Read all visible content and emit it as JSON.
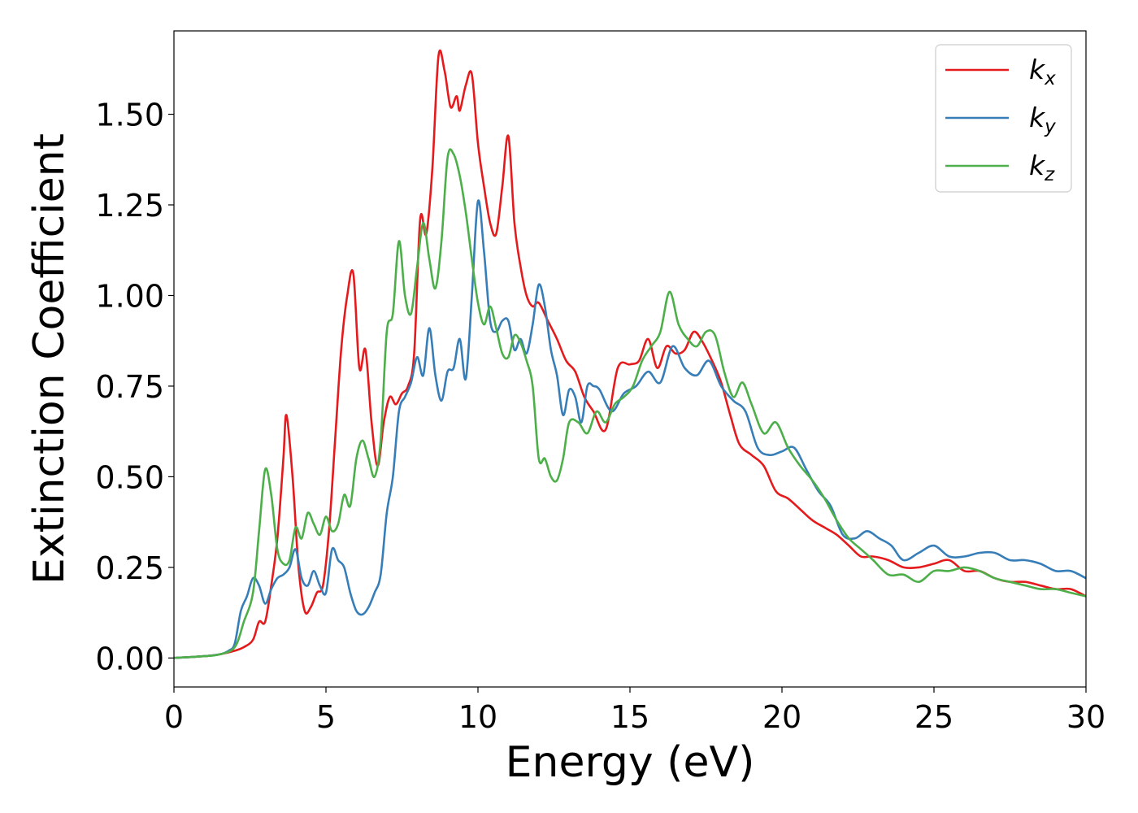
{
  "chart_data": {
    "type": "line",
    "xlabel": "Energy (eV)",
    "ylabel": "Extinction Coefficient",
    "xlim": [
      0,
      30
    ],
    "ylim": [
      -0.08,
      1.73
    ],
    "xticks": [
      0,
      5,
      10,
      15,
      20,
      25,
      30
    ],
    "xtick_labels": [
      "0",
      "5",
      "10",
      "15",
      "20",
      "25",
      "30"
    ],
    "yticks": [
      0,
      0.25,
      0.5,
      0.75,
      1.0,
      1.25,
      1.5
    ],
    "ytick_labels": [
      "0.00",
      "0.25",
      "0.50",
      "0.75",
      "1.00",
      "1.25",
      "1.50"
    ],
    "grid": false,
    "legend_position": "top-right",
    "series": [
      {
        "name": "k_x",
        "legend_base": "k",
        "legend_sub": "x",
        "color": "#e41a1c",
        "x": [
          0,
          1,
          1.5,
          2,
          2.3,
          2.6,
          2.8,
          3.0,
          3.2,
          3.4,
          3.6,
          3.7,
          3.9,
          4.1,
          4.3,
          4.5,
          4.7,
          4.9,
          5.1,
          5.3,
          5.5,
          5.7,
          5.9,
          6.1,
          6.3,
          6.5,
          6.7,
          6.9,
          7.1,
          7.3,
          7.5,
          7.7,
          7.9,
          8.1,
          8.3,
          8.5,
          8.7,
          8.9,
          9.1,
          9.3,
          9.4,
          9.6,
          9.8,
          10.0,
          10.2,
          10.4,
          10.6,
          10.8,
          11.0,
          11.2,
          11.4,
          11.6,
          11.8,
          12.0,
          12.3,
          12.6,
          12.9,
          13.2,
          13.5,
          13.8,
          14.2,
          14.6,
          15.0,
          15.3,
          15.6,
          15.9,
          16.2,
          16.5,
          16.8,
          17.1,
          17.4,
          17.7,
          18.0,
          18.3,
          18.6,
          19.0,
          19.4,
          19.8,
          20.2,
          20.6,
          21.0,
          21.4,
          21.8,
          22.2,
          22.6,
          23.0,
          23.5,
          24.0,
          24.5,
          25.0,
          25.5,
          26.0,
          26.5,
          27.0,
          27.5,
          28.0,
          28.5,
          29.0,
          29.5,
          30.0
        ],
        "y": [
          0.0,
          0.005,
          0.01,
          0.02,
          0.03,
          0.05,
          0.1,
          0.1,
          0.2,
          0.33,
          0.55,
          0.67,
          0.5,
          0.25,
          0.13,
          0.14,
          0.18,
          0.2,
          0.35,
          0.6,
          0.85,
          1.0,
          1.06,
          0.8,
          0.85,
          0.65,
          0.53,
          0.65,
          0.72,
          0.7,
          0.73,
          0.75,
          0.84,
          1.21,
          1.17,
          1.35,
          1.66,
          1.62,
          1.52,
          1.55,
          1.51,
          1.58,
          1.61,
          1.42,
          1.3,
          1.2,
          1.17,
          1.3,
          1.44,
          1.2,
          1.08,
          1.0,
          0.97,
          0.98,
          0.93,
          0.88,
          0.82,
          0.79,
          0.72,
          0.68,
          0.63,
          0.8,
          0.81,
          0.82,
          0.88,
          0.8,
          0.86,
          0.84,
          0.85,
          0.9,
          0.87,
          0.82,
          0.76,
          0.67,
          0.59,
          0.56,
          0.53,
          0.46,
          0.44,
          0.41,
          0.38,
          0.36,
          0.34,
          0.31,
          0.28,
          0.28,
          0.27,
          0.25,
          0.25,
          0.26,
          0.27,
          0.24,
          0.24,
          0.22,
          0.21,
          0.21,
          0.2,
          0.19,
          0.19,
          0.17
        ]
      },
      {
        "name": "k_y",
        "legend_base": "k",
        "legend_sub": "y",
        "color": "#377eb8",
        "x": [
          0,
          1,
          1.5,
          1.8,
          2.0,
          2.2,
          2.4,
          2.6,
          2.8,
          3.0,
          3.2,
          3.4,
          3.6,
          3.8,
          4.0,
          4.2,
          4.4,
          4.6,
          4.8,
          5.0,
          5.2,
          5.4,
          5.6,
          5.8,
          6.0,
          6.2,
          6.4,
          6.6,
          6.8,
          7.0,
          7.2,
          7.4,
          7.6,
          7.8,
          8.0,
          8.2,
          8.4,
          8.6,
          8.8,
          9.0,
          9.2,
          9.4,
          9.6,
          9.8,
          10.0,
          10.2,
          10.4,
          10.6,
          10.8,
          11.0,
          11.2,
          11.4,
          11.6,
          11.8,
          12.0,
          12.2,
          12.4,
          12.6,
          12.8,
          13.0,
          13.2,
          13.4,
          13.6,
          13.8,
          14.0,
          14.4,
          14.8,
          15.2,
          15.6,
          16.0,
          16.4,
          16.8,
          17.2,
          17.6,
          18.0,
          18.4,
          18.8,
          19.2,
          19.6,
          20.0,
          20.4,
          20.8,
          21.2,
          21.6,
          22.0,
          22.4,
          22.8,
          23.2,
          23.6,
          24.0,
          24.5,
          25.0,
          25.5,
          26.0,
          26.5,
          27.0,
          27.5,
          28.0,
          28.5,
          29.0,
          29.5,
          30.0
        ],
        "y": [
          0.0,
          0.005,
          0.01,
          0.02,
          0.04,
          0.13,
          0.17,
          0.22,
          0.2,
          0.15,
          0.19,
          0.22,
          0.23,
          0.25,
          0.3,
          0.22,
          0.2,
          0.24,
          0.2,
          0.18,
          0.3,
          0.27,
          0.25,
          0.18,
          0.13,
          0.12,
          0.14,
          0.18,
          0.23,
          0.4,
          0.5,
          0.68,
          0.72,
          0.76,
          0.83,
          0.78,
          0.91,
          0.78,
          0.71,
          0.79,
          0.8,
          0.88,
          0.77,
          1.0,
          1.26,
          1.12,
          0.93,
          0.9,
          0.93,
          0.93,
          0.85,
          0.88,
          0.84,
          0.92,
          1.03,
          0.97,
          0.85,
          0.78,
          0.67,
          0.74,
          0.72,
          0.65,
          0.75,
          0.75,
          0.74,
          0.68,
          0.73,
          0.75,
          0.79,
          0.76,
          0.86,
          0.8,
          0.78,
          0.82,
          0.75,
          0.71,
          0.68,
          0.58,
          0.56,
          0.57,
          0.58,
          0.52,
          0.46,
          0.42,
          0.34,
          0.33,
          0.35,
          0.33,
          0.31,
          0.27,
          0.29,
          0.31,
          0.28,
          0.28,
          0.29,
          0.29,
          0.27,
          0.27,
          0.26,
          0.24,
          0.24,
          0.22
        ]
      },
      {
        "name": "k_z",
        "legend_base": "k",
        "legend_sub": "z",
        "color": "#4daf4a",
        "x": [
          0,
          1,
          1.5,
          2.0,
          2.3,
          2.6,
          2.8,
          3.0,
          3.2,
          3.4,
          3.6,
          3.8,
          4.0,
          4.2,
          4.4,
          4.6,
          4.8,
          5.0,
          5.2,
          5.4,
          5.6,
          5.8,
          6.0,
          6.2,
          6.4,
          6.6,
          6.8,
          7.0,
          7.2,
          7.4,
          7.6,
          7.8,
          8.0,
          8.2,
          8.4,
          8.6,
          8.8,
          9.0,
          9.2,
          9.4,
          9.6,
          9.8,
          10.0,
          10.2,
          10.4,
          10.6,
          10.8,
          11.0,
          11.2,
          11.4,
          11.6,
          11.8,
          12.0,
          12.2,
          12.4,
          12.6,
          12.8,
          13.0,
          13.3,
          13.6,
          13.9,
          14.2,
          14.5,
          14.8,
          15.1,
          15.4,
          15.7,
          16.0,
          16.3,
          16.6,
          16.9,
          17.2,
          17.5,
          17.8,
          18.1,
          18.4,
          18.7,
          19.0,
          19.4,
          19.8,
          20.2,
          20.6,
          21.0,
          21.4,
          21.8,
          22.2,
          22.6,
          23.0,
          23.5,
          24.0,
          24.5,
          25.0,
          25.5,
          26.0,
          26.5,
          27.0,
          27.5,
          28.0,
          28.5,
          29.0,
          29.5,
          30.0
        ],
        "y": [
          0.0,
          0.005,
          0.01,
          0.03,
          0.1,
          0.18,
          0.35,
          0.52,
          0.45,
          0.3,
          0.26,
          0.27,
          0.36,
          0.33,
          0.4,
          0.37,
          0.34,
          0.39,
          0.35,
          0.37,
          0.45,
          0.42,
          0.55,
          0.6,
          0.55,
          0.5,
          0.6,
          0.9,
          0.95,
          1.15,
          1.0,
          0.95,
          1.08,
          1.2,
          1.1,
          1.02,
          1.15,
          1.38,
          1.39,
          1.33,
          1.23,
          1.1,
          0.98,
          0.92,
          0.97,
          0.91,
          0.84,
          0.83,
          0.89,
          0.87,
          0.82,
          0.75,
          0.55,
          0.55,
          0.5,
          0.49,
          0.55,
          0.65,
          0.65,
          0.62,
          0.68,
          0.65,
          0.7,
          0.72,
          0.75,
          0.82,
          0.86,
          0.9,
          1.01,
          0.92,
          0.88,
          0.86,
          0.9,
          0.89,
          0.79,
          0.72,
          0.76,
          0.7,
          0.62,
          0.65,
          0.58,
          0.53,
          0.49,
          0.44,
          0.38,
          0.33,
          0.3,
          0.27,
          0.23,
          0.23,
          0.21,
          0.24,
          0.24,
          0.25,
          0.24,
          0.22,
          0.21,
          0.2,
          0.19,
          0.19,
          0.18,
          0.17
        ]
      }
    ]
  }
}
